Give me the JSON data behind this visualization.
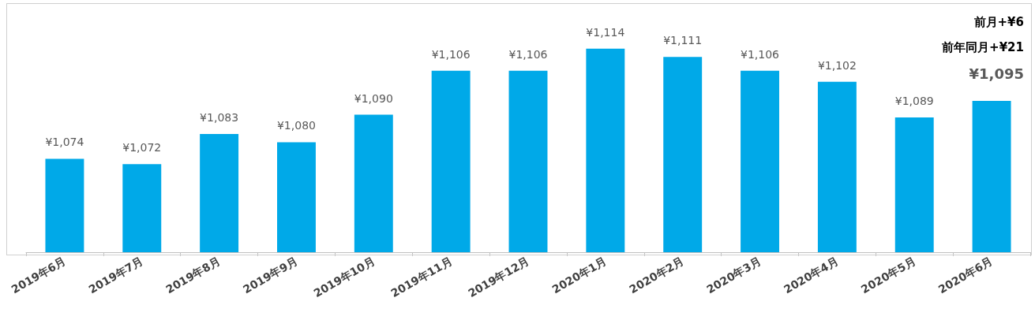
{
  "chart_data": {
    "type": "bar",
    "categories": [
      "2019年6月",
      "2019年7月",
      "2019年8月",
      "2019年9月",
      "2019年10月",
      "2019年11月",
      "2019年12月",
      "2020年1月",
      "2020年2月",
      "2020年3月",
      "2020年4月",
      "2020年5月",
      "2020年6月"
    ],
    "values": [
      1074,
      1072,
      1083,
      1080,
      1090,
      1106,
      1106,
      1114,
      1111,
      1106,
      1102,
      1089,
      1095
    ],
    "color": "#00a9e8",
    "value_labels": [
      "¥1,074",
      "¥1,072",
      "¥1,083",
      "¥1,080",
      "¥1,090",
      "¥1,106",
      "¥1,106",
      "¥1,114",
      "¥1,111",
      "¥1,106",
      "¥1,102",
      "¥1,089",
      null
    ],
    "ylim": [
      1040,
      1130
    ],
    "tick_labels": "x",
    "annotations": [
      "前月+¥6",
      "前年同月+¥21",
      "¥1,095"
    ]
  }
}
